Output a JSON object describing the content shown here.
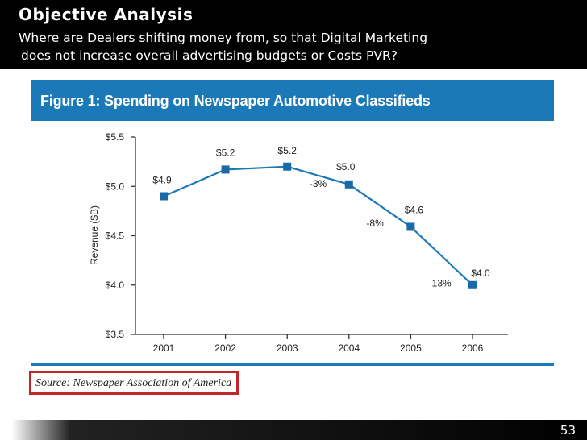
{
  "header": {
    "title": "Objective Analysis",
    "subtitle_line1": "Where are Dealers shifting money from, so that Digital Marketing",
    "subtitle_line2": "does not increase overall advertising budgets or Costs PVR?"
  },
  "figure": {
    "title": "Figure 1: Spending on Newspaper Automotive Classifieds",
    "source": "Source: Newspaper Association of America"
  },
  "footer": {
    "page_number": "53"
  },
  "colors": {
    "accent": "#1b79b8",
    "line": "#1b79b8",
    "marker": "#1a6aa8",
    "source_border": "#c0272d"
  },
  "chart_data": {
    "type": "line",
    "title": "Figure 1: Spending on Newspaper Automotive Classifieds",
    "xlabel": "",
    "ylabel": "Revenue ($B)",
    "categories": [
      "2001",
      "2002",
      "2003",
      "2004",
      "2005",
      "2006"
    ],
    "values": [
      4.9,
      5.17,
      5.2,
      5.02,
      4.59,
      4.0
    ],
    "value_labels": [
      "$4.9",
      "$5.2",
      "$5.2",
      "$5.0",
      "$4.6",
      "$4.0"
    ],
    "change_labels": [
      {
        "between": [
          "2003",
          "2004"
        ],
        "text": "-3%"
      },
      {
        "between": [
          "2004",
          "2005"
        ],
        "text": "-8%"
      },
      {
        "between": [
          "2005",
          "2006"
        ],
        "text": "-13%"
      }
    ],
    "ylim": [
      3.5,
      5.5
    ],
    "y_ticks": [
      3.5,
      4.0,
      4.5,
      5.0,
      5.5
    ],
    "y_tick_labels": [
      "$3.5",
      "$4.0",
      "$4.5",
      "$5.0",
      "$5.5"
    ],
    "grid": false
  }
}
